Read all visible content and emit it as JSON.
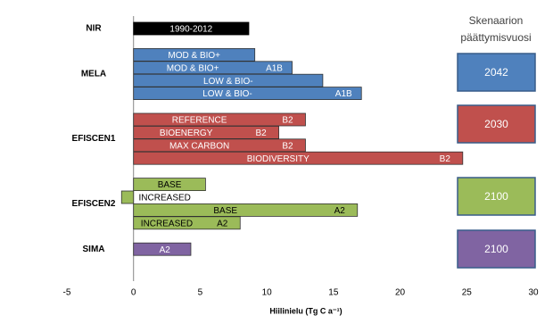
{
  "chart_data": {
    "type": "bar",
    "orientation": "horizontal",
    "xlabel": "Hiilinielu (Tg C a⁻¹)",
    "xlim": [
      -5,
      30
    ],
    "xticks": [
      -5,
      0,
      5,
      10,
      15,
      20,
      25,
      30
    ],
    "end_year_title": [
      "Skenaarion",
      "päättymisvuosi"
    ],
    "groups": [
      {
        "name": "NIR",
        "color": "#000000",
        "text_color": "#ffffff",
        "bars": [
          {
            "label": "1990-2012",
            "value": 8.65
          }
        ]
      },
      {
        "name": "MELA",
        "color": "#4f81bd",
        "text_color": "#ffffff",
        "end_year": 2042,
        "bars": [
          {
            "label": "MOD & BIO+",
            "value": 9.1
          },
          {
            "label": "MOD & BIO+",
            "scenario": "A1B",
            "value": 11.9
          },
          {
            "label": "LOW & BIO-",
            "value": 14.2
          },
          {
            "label": "LOW & BIO-",
            "scenario": "A1B",
            "value": 17.1
          }
        ]
      },
      {
        "name": "EFISCEN1",
        "color": "#c0504d",
        "text_color": "#ffffff",
        "end_year": 2030,
        "bars": [
          {
            "label": "REFERENCE",
            "scenario": "B2",
            "value": 12.9
          },
          {
            "label": "BIOENERGY",
            "scenario": "B2",
            "value": 10.9
          },
          {
            "label": "MAX CARBON",
            "scenario": "B2",
            "value": 12.9
          },
          {
            "label": "BIODIVERSITY",
            "scenario": "B2",
            "value": 24.7
          }
        ]
      },
      {
        "name": "EFISCEN2",
        "color": "#9bbb59",
        "text_color": "#000000",
        "end_year": 2100,
        "bars": [
          {
            "label": "BASE",
            "value": 5.4
          },
          {
            "label": "INCREASED",
            "value": -0.9
          },
          {
            "label": "BASE",
            "scenario": "A2",
            "value": 16.8
          },
          {
            "label": "INCREASED",
            "scenario": "A2",
            "value": 8.0
          }
        ]
      },
      {
        "name": "SIMA",
        "color": "#8064a2",
        "text_color": "#ffffff",
        "end_year": 2100,
        "bars": [
          {
            "label": "A2",
            "value": 4.3
          }
        ]
      }
    ]
  }
}
